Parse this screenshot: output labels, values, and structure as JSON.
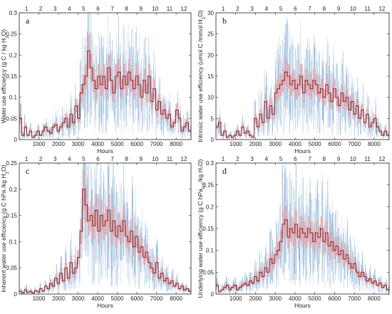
{
  "figure": {
    "background": "#ffffff"
  },
  "colors": {
    "raw": "#5f8fc0",
    "raw_light": "#a9c4df",
    "hourly_band": "#e4a7ad",
    "median_step": "#8c1c1c",
    "axis": "#222222"
  },
  "chart_data": [
    {
      "id": "a",
      "type": "line",
      "panel_letter": "a",
      "title": "",
      "xlabel": "Hours",
      "ylabel": "Water use efficiency (g C / kg H",
      "ylabel_subscript": "2",
      "ylabel_tail": "O)",
      "xlim": [
        0,
        8760
      ],
      "ylim": [
        0,
        0.3
      ],
      "x_ticks": [
        1000,
        2000,
        3000,
        4000,
        5000,
        6000,
        7000,
        8000
      ],
      "x_tick_labels": [
        "1000",
        "2000",
        "3000",
        "4000",
        "5000",
        "6000",
        "7000",
        "8000"
      ],
      "y_ticks": [
        0,
        0.05,
        0.1,
        0.15,
        0.2,
        0.25,
        0.3
      ],
      "y_tick_labels": [
        "0",
        "0.05",
        "0.1",
        "0.15",
        "0.2",
        "0.25",
        "0.3"
      ],
      "month_ticks": [
        "1",
        "2",
        "3",
        "4",
        "5",
        "6",
        "7",
        "8",
        "9",
        "10",
        "11",
        "12"
      ],
      "series": [
        {
          "values": [
            0.05,
            0.01,
            0.03,
            0.01,
            0.02,
            0.005,
            0.01,
            0.02,
            0.01,
            0.02,
            0.03,
            0.02,
            0.015,
            0.03,
            0.035,
            0.02,
            0.03,
            0.04,
            0.05,
            0.03,
            0.06,
            0.04,
            0.08,
            0.05,
            0.11,
            0.13,
            0.15,
            0.21,
            0.17,
            0.14,
            0.12,
            0.15,
            0.13,
            0.15,
            0.12,
            0.17,
            0.14,
            0.11,
            0.15,
            0.16,
            0.12,
            0.15,
            0.13,
            0.16,
            0.14,
            0.12,
            0.15,
            0.13,
            0.1,
            0.14,
            0.11,
            0.15,
            0.09,
            0.12,
            0.07,
            0.09,
            0.06,
            0.07,
            0.05,
            0.06,
            0.03,
            0.04,
            0.07,
            0.05,
            0.02,
            0.03,
            0.04,
            0.02
          ]
        }
      ]
    },
    {
      "id": "b",
      "type": "line",
      "panel_letter": "b",
      "title": "",
      "xlabel": "Hours",
      "ylabel": "Intrinsic water use efficiency (umol C /mmol H",
      "ylabel_subscript": "2",
      "ylabel_tail": "O)",
      "xlim": [
        0,
        8760
      ],
      "ylim": [
        0,
        30
      ],
      "x_ticks": [
        1000,
        2000,
        3000,
        4000,
        5000,
        6000,
        7000,
        8000
      ],
      "x_tick_labels": [
        "1000",
        "2000",
        "3000",
        "4000",
        "5000",
        "6000",
        "7000",
        "8000"
      ],
      "y_ticks": [
        0,
        5,
        10,
        15,
        20,
        25,
        30
      ],
      "y_tick_labels": [
        "0",
        "5",
        "10",
        "15",
        "20",
        "25",
        "30"
      ],
      "month_ticks": [
        "1",
        "2",
        "3",
        "4",
        "5",
        "6",
        "7",
        "8",
        "9",
        "10",
        "11",
        "12"
      ],
      "series": [
        {
          "values": [
            3,
            4,
            1,
            2,
            0.5,
            1,
            0.5,
            1,
            2,
            1,
            3,
            1.5,
            2,
            1,
            0.5,
            5,
            3,
            6,
            4,
            9,
            5,
            8,
            6,
            11,
            12,
            13,
            14,
            16,
            15,
            13,
            14,
            12,
            13,
            15,
            11,
            14,
            13,
            12,
            14,
            13,
            11,
            12,
            10,
            13,
            11,
            9,
            12,
            10,
            8,
            11,
            9,
            10,
            7,
            9,
            6,
            8,
            5,
            7,
            4,
            6,
            3,
            4,
            5,
            3,
            2,
            1,
            2,
            1
          ]
        }
      ]
    },
    {
      "id": "c",
      "type": "line",
      "panel_letter": "c",
      "title": "",
      "xlabel": "Hours",
      "ylabel": "Inherent water use efficiency (g C hPa /kg H",
      "ylabel_subscript": "2",
      "ylabel_tail": "O)",
      "xlim": [
        0,
        8760
      ],
      "ylim": [
        0,
        0.25
      ],
      "x_ticks": [
        1000,
        2000,
        3000,
        4000,
        5000,
        6000,
        7000,
        8000
      ],
      "x_tick_labels": [
        "1000",
        "2000",
        "3000",
        "4000",
        "5000",
        "6000",
        "7000",
        "8000"
      ],
      "y_ticks": [
        0,
        0.05,
        0.1,
        0.15,
        0.2,
        0.25
      ],
      "y_tick_labels": [
        "0",
        "0.05",
        "0.1",
        "0.15",
        "0.2",
        "0.25"
      ],
      "month_ticks": [
        "1",
        "2",
        "3",
        "4",
        "5",
        "6",
        "7",
        "8",
        "9",
        "10",
        "11",
        "12"
      ],
      "series": [
        {
          "values": [
            0.005,
            0.002,
            0.008,
            0.003,
            0.005,
            0.002,
            0.006,
            0.004,
            0.01,
            0.005,
            0.015,
            0.01,
            0.02,
            0.015,
            0.03,
            0.02,
            0.04,
            0.025,
            0.05,
            0.03,
            0.06,
            0.04,
            0.05,
            0.07,
            0.12,
            0.2,
            0.17,
            0.14,
            0.15,
            0.13,
            0.16,
            0.12,
            0.15,
            0.13,
            0.14,
            0.16,
            0.12,
            0.14,
            0.11,
            0.13,
            0.12,
            0.14,
            0.11,
            0.1,
            0.12,
            0.09,
            0.11,
            0.08,
            0.09,
            0.07,
            0.08,
            0.06,
            0.05,
            0.04,
            0.06,
            0.03,
            0.04,
            0.025,
            0.03,
            0.02,
            0.025,
            0.015,
            0.02,
            0.01,
            0.015,
            0.008,
            0.01,
            0.005
          ]
        }
      ]
    },
    {
      "id": "d",
      "type": "line",
      "panel_letter": "d",
      "title": "",
      "xlabel": "Hours",
      "ylabel": "Underlying water use efficiency (g C hPa",
      "ylabel_subscript": "0.5",
      "ylabel_tail": "/kg H₂O)",
      "xlim": [
        0,
        8760
      ],
      "ylim": [
        0,
        0.3
      ],
      "x_ticks": [
        1000,
        2000,
        3000,
        4000,
        5000,
        6000,
        7000,
        8000
      ],
      "x_tick_labels": [
        "1000",
        "2000",
        "3000",
        "4000",
        "5000",
        "6000",
        "7000",
        "8000"
      ],
      "y_ticks": [
        0,
        0.05,
        0.1,
        0.15,
        0.2,
        0.25,
        0.3
      ],
      "y_tick_labels": [
        "0",
        "0.05",
        "0.1",
        "0.15",
        "0.2",
        "0.25",
        "0.3"
      ],
      "month_ticks": [
        "1",
        "2",
        "3",
        "4",
        "5",
        "6",
        "7",
        "8",
        "9",
        "10",
        "11",
        "12"
      ],
      "series": [
        {
          "values": [
            0.02,
            0.005,
            0.01,
            0.015,
            0.02,
            0.01,
            0.015,
            0.02,
            0.01,
            0.015,
            0.02,
            0.025,
            0.02,
            0.03,
            0.025,
            0.04,
            0.03,
            0.05,
            0.04,
            0.06,
            0.05,
            0.08,
            0.07,
            0.09,
            0.1,
            0.12,
            0.16,
            0.17,
            0.13,
            0.15,
            0.14,
            0.16,
            0.13,
            0.15,
            0.14,
            0.13,
            0.15,
            0.14,
            0.12,
            0.14,
            0.13,
            0.15,
            0.12,
            0.14,
            0.11,
            0.12,
            0.1,
            0.11,
            0.09,
            0.1,
            0.08,
            0.09,
            0.07,
            0.06,
            0.07,
            0.05,
            0.04,
            0.05,
            0.04,
            0.03,
            0.035,
            0.025,
            0.03,
            0.02,
            0.025,
            0.015,
            0.02,
            0.01
          ]
        }
      ]
    }
  ]
}
